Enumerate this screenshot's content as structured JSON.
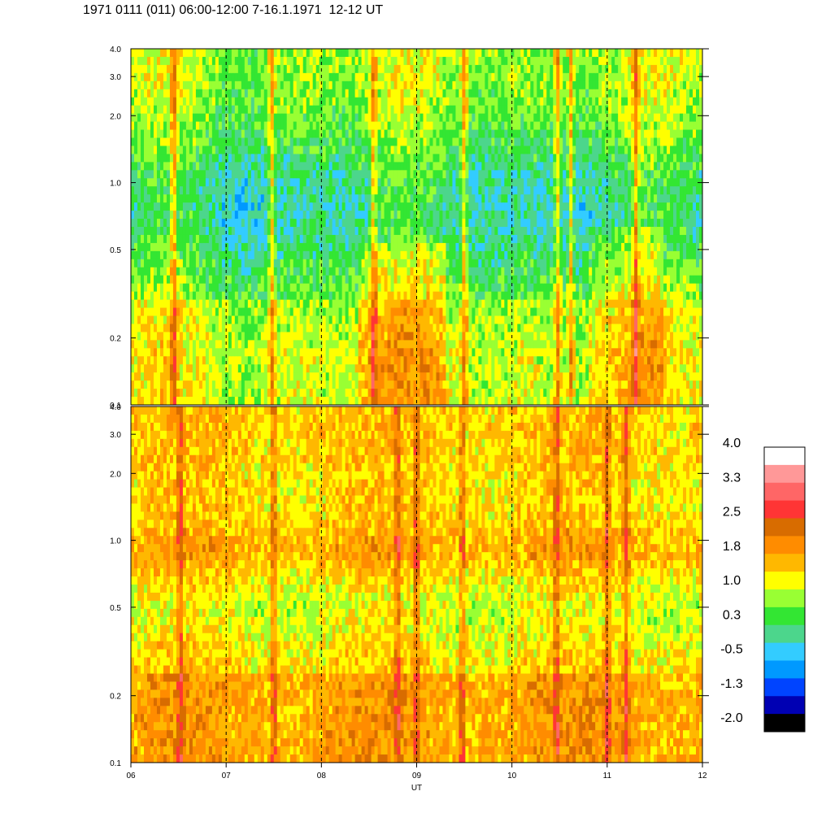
{
  "title": "1971 0111 (011) 06:00-12:00 7-16.1.1971  12-12 UT",
  "chart_data": {
    "type": "heatmap",
    "xlabel": "UT",
    "x_ticks": [
      "06",
      "07",
      "08",
      "09",
      "10",
      "11",
      "12"
    ],
    "x_range": [
      6,
      12
    ],
    "panels": [
      {
        "name": "",
        "y_ticks": [
          "4.0",
          "3.0",
          "2.0",
          "1.0",
          "0.5",
          "0.2",
          "0.1"
        ],
        "y_range": [
          0.1,
          4.0
        ],
        "y_scale": "log",
        "dominant_levels": "blue-green (-1.3 to 0.3) with yellow-orange streaks"
      },
      {
        "name": "",
        "y_ticks": [
          "4.0",
          "3.0",
          "2.0",
          "1.0",
          "0.5",
          "0.2",
          "0.1"
        ],
        "y_range": [
          0.1,
          4.0
        ],
        "y_scale": "log",
        "dominant_levels": "green-orange (0.3 to 2.5)"
      }
    ],
    "colorbar": {
      "labels": [
        "4.0",
        "3.3",
        "2.5",
        "1.8",
        "1.0",
        "0.3",
        "-0.5",
        "-1.3",
        "-2.0"
      ],
      "colors": [
        "#ffffff",
        "#ff9898",
        "#ff6666",
        "#ff3535",
        "#d86c00",
        "#ff8c00",
        "#ffb800",
        "#ffff00",
        "#99ff33",
        "#33e633",
        "#4cd68c",
        "#33ccff",
        "#0099ff",
        "#0044ff",
        "#0000b3",
        "#000000"
      ]
    },
    "vertical_dashed_lines_at": [
      7,
      8,
      9,
      10,
      11
    ],
    "grid": false
  }
}
